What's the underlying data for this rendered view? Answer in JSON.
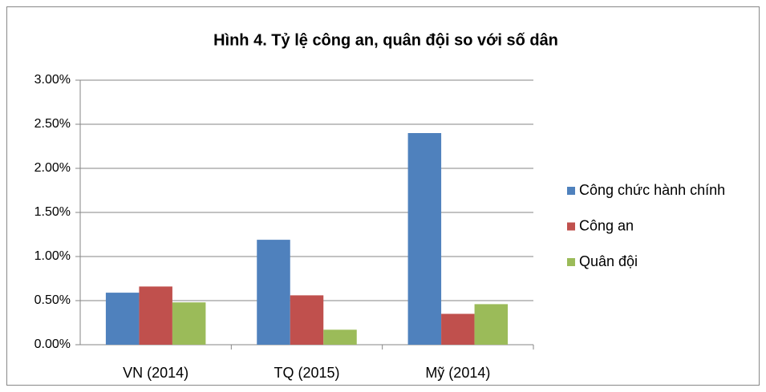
{
  "chart_data": {
    "type": "bar",
    "title": "Hình 4. Tỷ lệ công an, quân đội so với số dân",
    "categories": [
      "VN (2014)",
      "TQ (2015)",
      "Mỹ (2014)"
    ],
    "series": [
      {
        "name": "Công chức hành chính",
        "color": "#4f81bd",
        "values": [
          0.59,
          1.19,
          2.4
        ]
      },
      {
        "name": "Công an",
        "color": "#c0504d",
        "values": [
          0.66,
          0.56,
          0.35
        ]
      },
      {
        "name": "Quân đội",
        "color": "#9bbb59",
        "values": [
          0.48,
          0.17,
          0.46
        ]
      }
    ],
    "ylim": [
      0,
      3
    ],
    "yticks": [
      {
        "value": 0,
        "label": "0.00%"
      },
      {
        "value": 0.5,
        "label": "0.50%"
      },
      {
        "value": 1,
        "label": "1.00%"
      },
      {
        "value": 1.5,
        "label": "1.50%"
      },
      {
        "value": 2,
        "label": "2.00%"
      },
      {
        "value": 2.5,
        "label": "2.50%"
      },
      {
        "value": 3,
        "label": "3.00%"
      }
    ],
    "grid": true,
    "legend": "right"
  }
}
